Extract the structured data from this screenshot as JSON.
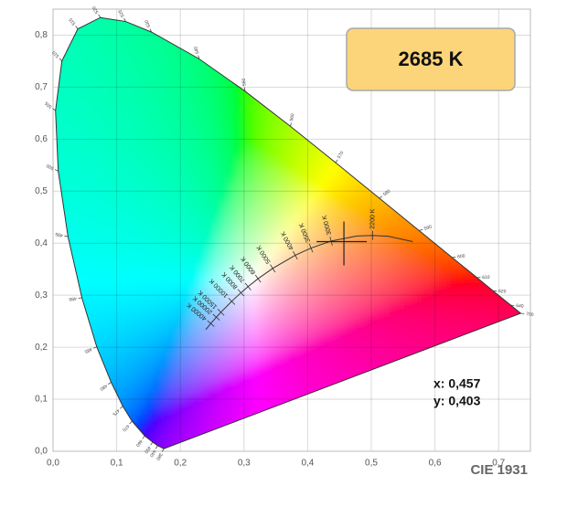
{
  "chart_data": {
    "type": "chromaticity",
    "xlim": [
      0,
      0.75
    ],
    "ylim": [
      0,
      0.85
    ],
    "xticks": [
      {
        "value": 0,
        "label": "0,0"
      },
      {
        "value": 0.1,
        "label": "0,1"
      },
      {
        "value": 0.2,
        "label": "0,2"
      },
      {
        "value": 0.3,
        "label": "0,3"
      },
      {
        "value": 0.4,
        "label": "0,4"
      },
      {
        "value": 0.5,
        "label": "0,5"
      },
      {
        "value": 0.6,
        "label": "0,6"
      },
      {
        "value": 0.7,
        "label": "0,7"
      }
    ],
    "yticks": [
      {
        "value": 0,
        "label": "0,0"
      },
      {
        "value": 0.1,
        "label": "0,1"
      },
      {
        "value": 0.2,
        "label": "0,2"
      },
      {
        "value": 0.3,
        "label": "0,3"
      },
      {
        "value": 0.4,
        "label": "0,4"
      },
      {
        "value": 0.5,
        "label": "0,5"
      },
      {
        "value": 0.6,
        "label": "0,6"
      },
      {
        "value": 0.7,
        "label": "0,7"
      },
      {
        "value": 0.8,
        "label": "0,8"
      }
    ],
    "grid": true,
    "spectral_locus": {
      "wavelengths": [
        380,
        440,
        450,
        460,
        470,
        475,
        480,
        485,
        490,
        495,
        500,
        505,
        510,
        515,
        520,
        525,
        530,
        540,
        550,
        560,
        570,
        580,
        590,
        600,
        610,
        620,
        640,
        700
      ],
      "x": [
        0.1741,
        0.1644,
        0.1566,
        0.144,
        0.1241,
        0.1096,
        0.0913,
        0.0687,
        0.0454,
        0.0235,
        0.0082,
        0.0039,
        0.0139,
        0.0389,
        0.0743,
        0.1142,
        0.1547,
        0.2296,
        0.3016,
        0.3731,
        0.4441,
        0.5125,
        0.5752,
        0.627,
        0.6658,
        0.6915,
        0.719,
        0.7347
      ],
      "y": [
        0.005,
        0.0109,
        0.0177,
        0.0297,
        0.0578,
        0.0868,
        0.1327,
        0.2007,
        0.295,
        0.4127,
        0.5384,
        0.6548,
        0.7502,
        0.812,
        0.8338,
        0.8262,
        0.8059,
        0.7543,
        0.6923,
        0.6245,
        0.5547,
        0.4866,
        0.4242,
        0.3725,
        0.334,
        0.3083,
        0.2809,
        0.2653
      ]
    },
    "planckian_locus": {
      "x": [
        0.565,
        0.5267,
        0.502,
        0.477,
        0.4369,
        0.4053,
        0.3805,
        0.3451,
        0.3221,
        0.3064,
        0.2952,
        0.2807,
        0.2637,
        0.2565,
        0.2478,
        0.2399
      ],
      "y": [
        0.403,
        0.4133,
        0.415,
        0.4137,
        0.4041,
        0.3907,
        0.3768,
        0.3516,
        0.3318,
        0.3166,
        0.3048,
        0.2883,
        0.2673,
        0.2577,
        0.2456,
        0.234
      ],
      "labels": [
        null,
        null,
        "2200 K",
        null,
        "3000 K",
        "3500 K",
        "4000 K",
        "5000 K",
        "6000 K",
        "7000 K",
        "8000 K",
        "10000 K",
        "15000 K",
        "20000 K",
        "40000 K",
        null
      ]
    },
    "marker": {
      "x": 0.457,
      "y": 0.403,
      "x_label": "x: 0,457",
      "y_label": "y: 0,403"
    },
    "badge": "2685 K",
    "footer": "CIE 1931"
  }
}
